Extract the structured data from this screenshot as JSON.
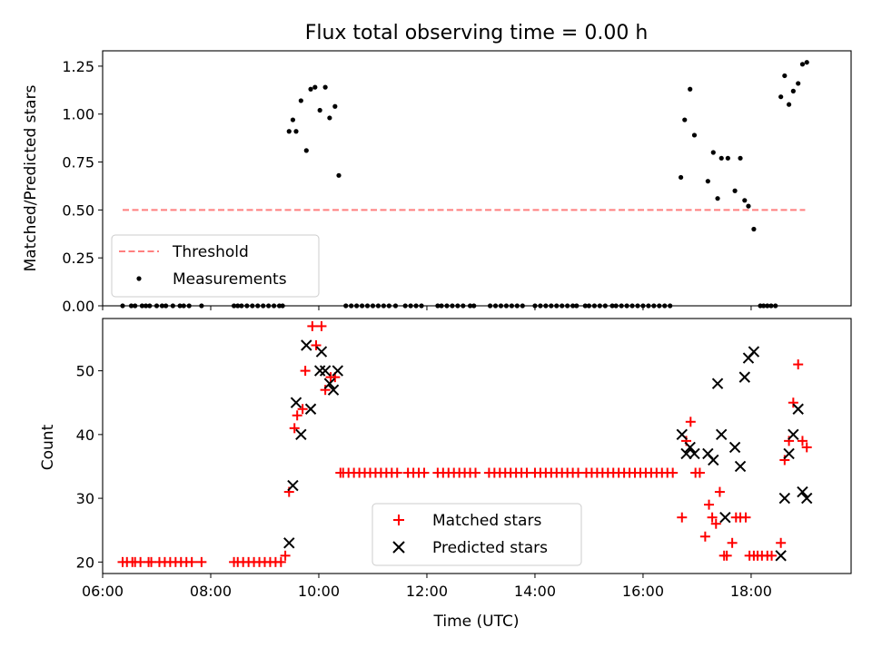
{
  "title": "Flux total observing time = 0.00 h",
  "chart_data": [
    {
      "type": "scatter",
      "ylabel": "Matched/Predicted stars",
      "ylim": [
        0,
        1.33
      ],
      "yticks": [
        "0.00",
        "0.25",
        "0.50",
        "0.75",
        "1.00",
        "1.25"
      ],
      "ytick_values": [
        0,
        0.25,
        0.5,
        0.75,
        1.0,
        1.25
      ],
      "xlim": [
        6.0,
        19.85
      ],
      "xtick_values": [
        6,
        8,
        10,
        12,
        14,
        16,
        18
      ],
      "legend": {
        "placement": "lower-left",
        "entries": [
          "Threshold",
          "Measurements"
        ]
      },
      "threshold": {
        "name": "Threshold",
        "value": 0.5,
        "x_start": 6.37,
        "x_end": 19.0,
        "color": "#ff7f7f"
      },
      "series": [
        {
          "name": "Measurements",
          "color": "#000000",
          "x": [
            6.37,
            6.53,
            6.6,
            6.73,
            6.8,
            6.87,
            7.0,
            7.1,
            7.17,
            7.3,
            7.43,
            7.5,
            7.6,
            7.83,
            8.43,
            8.5,
            8.57,
            8.67,
            8.77,
            8.87,
            8.97,
            9.07,
            9.17,
            9.27,
            9.33,
            9.45,
            9.52,
            9.58,
            9.67,
            9.77,
            9.85,
            9.93,
            10.02,
            10.12,
            10.2,
            10.3,
            10.37,
            10.5,
            10.6,
            10.7,
            10.8,
            10.9,
            11.0,
            11.1,
            11.2,
            11.3,
            11.42,
            11.6,
            11.7,
            11.8,
            11.9,
            12.2,
            12.27,
            12.37,
            12.47,
            12.57,
            12.67,
            12.8,
            12.87,
            13.17,
            13.27,
            13.37,
            13.47,
            13.57,
            13.67,
            13.77,
            14.0,
            14.1,
            14.2,
            14.3,
            14.4,
            14.5,
            14.6,
            14.7,
            14.77,
            14.93,
            15.0,
            15.1,
            15.2,
            15.3,
            15.43,
            15.5,
            15.6,
            15.7,
            15.8,
            15.9,
            16.0,
            16.1,
            16.2,
            16.3,
            16.4,
            16.5,
            16.7,
            16.77,
            16.87,
            16.95,
            17.2,
            17.3,
            17.38,
            17.45,
            17.57,
            17.7,
            17.8,
            17.88,
            17.95,
            18.05,
            18.17,
            18.23,
            18.3,
            18.37,
            18.45,
            18.55,
            18.62,
            18.7,
            18.78,
            18.87,
            18.95,
            19.03
          ],
          "y": [
            0,
            0,
            0,
            0,
            0,
            0,
            0,
            0,
            0,
            0,
            0,
            0,
            0,
            0,
            0,
            0,
            0,
            0,
            0,
            0,
            0,
            0,
            0,
            0,
            0,
            0.91,
            0.97,
            0.91,
            1.07,
            0.81,
            1.13,
            1.14,
            1.02,
            1.14,
            0.98,
            1.04,
            0.68,
            0,
            0,
            0,
            0,
            0,
            0,
            0,
            0,
            0,
            0,
            0,
            0,
            0,
            0,
            0,
            0,
            0,
            0,
            0,
            0,
            0,
            0,
            0,
            0,
            0,
            0,
            0,
            0,
            0,
            0,
            0,
            0,
            0,
            0,
            0,
            0,
            0,
            0,
            0,
            0,
            0,
            0,
            0,
            0,
            0,
            0,
            0,
            0,
            0,
            0,
            0,
            0,
            0,
            0,
            0,
            0.67,
            0.97,
            1.13,
            0.89,
            0.65,
            0.8,
            0.56,
            0.77,
            0.77,
            0.6,
            0.77,
            0.55,
            0.52,
            0.4,
            0,
            0,
            0,
            0,
            0,
            1.09,
            1.2,
            1.05,
            1.12,
            1.16,
            1.26,
            1.27
          ]
        }
      ]
    },
    {
      "type": "scatter",
      "xlabel": "Time (UTC)",
      "ylabel": "Count",
      "ylim": [
        18.2,
        58.2
      ],
      "yticks": [
        "20",
        "30",
        "40",
        "50"
      ],
      "ytick_values": [
        20,
        30,
        40,
        50
      ],
      "xlim": [
        6.0,
        19.85
      ],
      "xticks": [
        "06:00",
        "08:00",
        "10:00",
        "12:00",
        "14:00",
        "16:00",
        "18:00"
      ],
      "xtick_values": [
        6,
        8,
        10,
        12,
        14,
        16,
        18
      ],
      "legend": {
        "placement": "lower-center",
        "entries": [
          "Matched stars",
          "Predicted stars"
        ]
      },
      "series": [
        {
          "name": "Matched stars",
          "marker": "plus",
          "color": "#ff0000",
          "x": [
            6.37,
            6.45,
            6.55,
            6.6,
            6.7,
            6.85,
            6.9,
            7.05,
            7.15,
            7.25,
            7.35,
            7.45,
            7.55,
            7.65,
            7.83,
            8.43,
            8.5,
            8.6,
            8.7,
            8.8,
            8.9,
            9.0,
            9.1,
            9.2,
            9.3,
            9.38,
            9.45,
            9.55,
            9.6,
            9.7,
            9.75,
            9.88,
            9.95,
            10.05,
            10.12,
            10.22,
            10.3,
            10.4,
            10.45,
            10.55,
            10.65,
            10.75,
            10.85,
            10.95,
            11.05,
            11.15,
            11.25,
            11.35,
            11.45,
            11.65,
            11.75,
            11.85,
            11.95,
            12.2,
            12.3,
            12.4,
            12.5,
            12.6,
            12.7,
            12.8,
            12.9,
            13.15,
            13.25,
            13.35,
            13.45,
            13.55,
            13.65,
            13.75,
            13.85,
            14.0,
            14.1,
            14.2,
            14.3,
            14.4,
            14.5,
            14.6,
            14.7,
            14.8,
            14.95,
            15.05,
            15.15,
            15.25,
            15.35,
            15.45,
            15.55,
            15.65,
            15.75,
            15.85,
            15.95,
            16.05,
            16.15,
            16.25,
            16.35,
            16.45,
            16.55,
            16.72,
            16.8,
            16.88,
            16.97,
            17.05,
            17.15,
            17.22,
            17.28,
            17.35,
            17.42,
            17.5,
            17.55,
            17.65,
            17.72,
            17.8,
            17.9,
            17.97,
            18.05,
            18.12,
            18.2,
            18.3,
            18.38,
            18.55,
            18.62,
            18.7,
            18.78,
            18.87,
            18.95,
            19.03
          ],
          "y": [
            20,
            20,
            20,
            20,
            20,
            20,
            20,
            20,
            20,
            20,
            20,
            20,
            20,
            20,
            20,
            20,
            20,
            20,
            20,
            20,
            20,
            20,
            20,
            20,
            20,
            21,
            31,
            41,
            43,
            44,
            50,
            57,
            54,
            57,
            47,
            49,
            49,
            34,
            34,
            34,
            34,
            34,
            34,
            34,
            34,
            34,
            34,
            34,
            34,
            34,
            34,
            34,
            34,
            34,
            34,
            34,
            34,
            34,
            34,
            34,
            34,
            34,
            34,
            34,
            34,
            34,
            34,
            34,
            34,
            34,
            34,
            34,
            34,
            34,
            34,
            34,
            34,
            34,
            34,
            34,
            34,
            34,
            34,
            34,
            34,
            34,
            34,
            34,
            34,
            34,
            34,
            34,
            34,
            34,
            34,
            27,
            39,
            42,
            34,
            34,
            24,
            29,
            27,
            26,
            31,
            21,
            21,
            23,
            27,
            27,
            27,
            21,
            21,
            21,
            21,
            21,
            21,
            23,
            36,
            39,
            45,
            51,
            39,
            38
          ]
        },
        {
          "name": "Predicted stars",
          "marker": "x",
          "color": "#000000",
          "x": [
            9.45,
            9.52,
            9.58,
            9.67,
            9.77,
            9.85,
            10.02,
            10.05,
            10.12,
            10.2,
            10.27,
            10.35,
            16.72,
            16.8,
            16.87,
            16.95,
            17.2,
            17.3,
            17.38,
            17.45,
            17.52,
            17.7,
            17.8,
            17.88,
            17.95,
            18.05,
            18.55,
            18.62,
            18.7,
            18.78,
            18.87,
            18.95,
            19.03
          ],
          "y": [
            23,
            32,
            45,
            40,
            54,
            44,
            50,
            53,
            50,
            48,
            47,
            50,
            40,
            37,
            38,
            37,
            37,
            36,
            48,
            40,
            27,
            38,
            35,
            49,
            52,
            53,
            21,
            30,
            37,
            40,
            44,
            31,
            30
          ]
        }
      ]
    }
  ]
}
